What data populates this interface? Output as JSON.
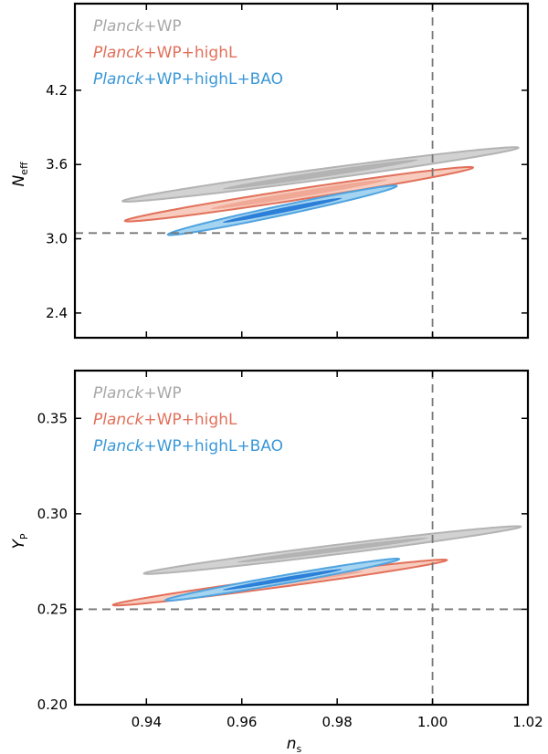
{
  "chart_data": [
    {
      "type": "contour",
      "xlabel": "n_s",
      "ylabel": "N_eff",
      "xlim": [
        0.925,
        1.02
      ],
      "ylim": [
        2.2,
        4.9
      ],
      "yticks": [
        "2.4",
        "3.0",
        "3.6",
        "4.2"
      ],
      "xticks": [],
      "reference_lines": {
        "x": 1.0,
        "y": 3.046
      },
      "legend": {
        "placement": "top-left",
        "entries": [
          {
            "italic": "Planck",
            "rest": "+WP",
            "color": "#a8a8a8"
          },
          {
            "italic": "Planck",
            "rest": "+WP+highL",
            "color": "#e2705a"
          },
          {
            "italic": "Planck",
            "rest": "+WP+highL+BAO",
            "color": "#3a98d8"
          }
        ]
      },
      "series": [
        {
          "name": "Planck+WP",
          "center": [
            0.9765,
            3.52
          ],
          "semi_axes_68": [
            0.0205,
            0.12
          ],
          "semi_axes_95": [
            0.0415,
            0.22
          ],
          "tilt": 0.98,
          "fill_68": "#b3b3b3",
          "fill_95": "#d2d2d2",
          "line": "#b3b3b3"
        },
        {
          "name": "Planck+WP+highL",
          "center": [
            0.972,
            3.36
          ],
          "semi_axes_68": [
            0.0185,
            0.12
          ],
          "semi_axes_95": [
            0.0365,
            0.22
          ],
          "tilt": 0.98,
          "fill_68": "#f0a996",
          "fill_95": "#f7cbbd",
          "line": "#e2705a"
        },
        {
          "name": "Planck+WP+highL+BAO",
          "center": [
            0.9685,
            3.23
          ],
          "semi_axes_68": [
            0.0125,
            0.1
          ],
          "semi_axes_95": [
            0.024,
            0.2
          ],
          "tilt": 0.98,
          "fill_68": "#2b7fd9",
          "fill_95": "#a5d4f0",
          "line": "#4fa3e0"
        }
      ]
    },
    {
      "type": "contour",
      "xlabel": "n_s",
      "ylabel": "Y_P",
      "xlim": [
        0.925,
        1.02
      ],
      "ylim": [
        0.2,
        0.375
      ],
      "yticks": [
        "0.20",
        "0.25",
        "0.30",
        "0.35"
      ],
      "xticks": [
        "0.94",
        "0.96",
        "0.98",
        "1.00",
        "1.02"
      ],
      "reference_lines": {
        "x": 1.0,
        "y": 0.25
      },
      "legend": {
        "placement": "top-left",
        "entries": [
          {
            "italic": "Planck",
            "rest": "+WP",
            "color": "#a8a8a8"
          },
          {
            "italic": "Planck",
            "rest": "+WP+highL",
            "color": "#e2705a"
          },
          {
            "italic": "Planck",
            "rest": "+WP+highL+BAO",
            "color": "#3a98d8"
          }
        ]
      },
      "series": [
        {
          "name": "Planck+WP",
          "center": [
            0.979,
            0.281
          ],
          "semi_axes_68": [
            0.02,
            0.0065
          ],
          "semi_axes_95": [
            0.0395,
            0.0125
          ],
          "tilt": 0.98,
          "fill_68": "#b3b3b3",
          "fill_95": "#d2d2d2",
          "line": "#b3b3b3"
        },
        {
          "name": "Planck+WP+highL",
          "center": [
            0.968,
            0.264
          ],
          "semi_axes_68": [
            0.0175,
            0.006
          ],
          "semi_axes_95": [
            0.035,
            0.012
          ],
          "tilt": 0.98,
          "fill_68": "#f0a996",
          "fill_95": "#f7cbbd",
          "line": "#e2705a"
        },
        {
          "name": "Planck+WP+highL+BAO",
          "center": [
            0.9685,
            0.2655
          ],
          "semi_axes_68": [
            0.0125,
            0.0055
          ],
          "semi_axes_95": [
            0.0245,
            0.011
          ],
          "tilt": 0.98,
          "fill_68": "#2b7fd9",
          "fill_95": "#a5d4f0",
          "line": "#4fa3e0"
        }
      ]
    }
  ]
}
